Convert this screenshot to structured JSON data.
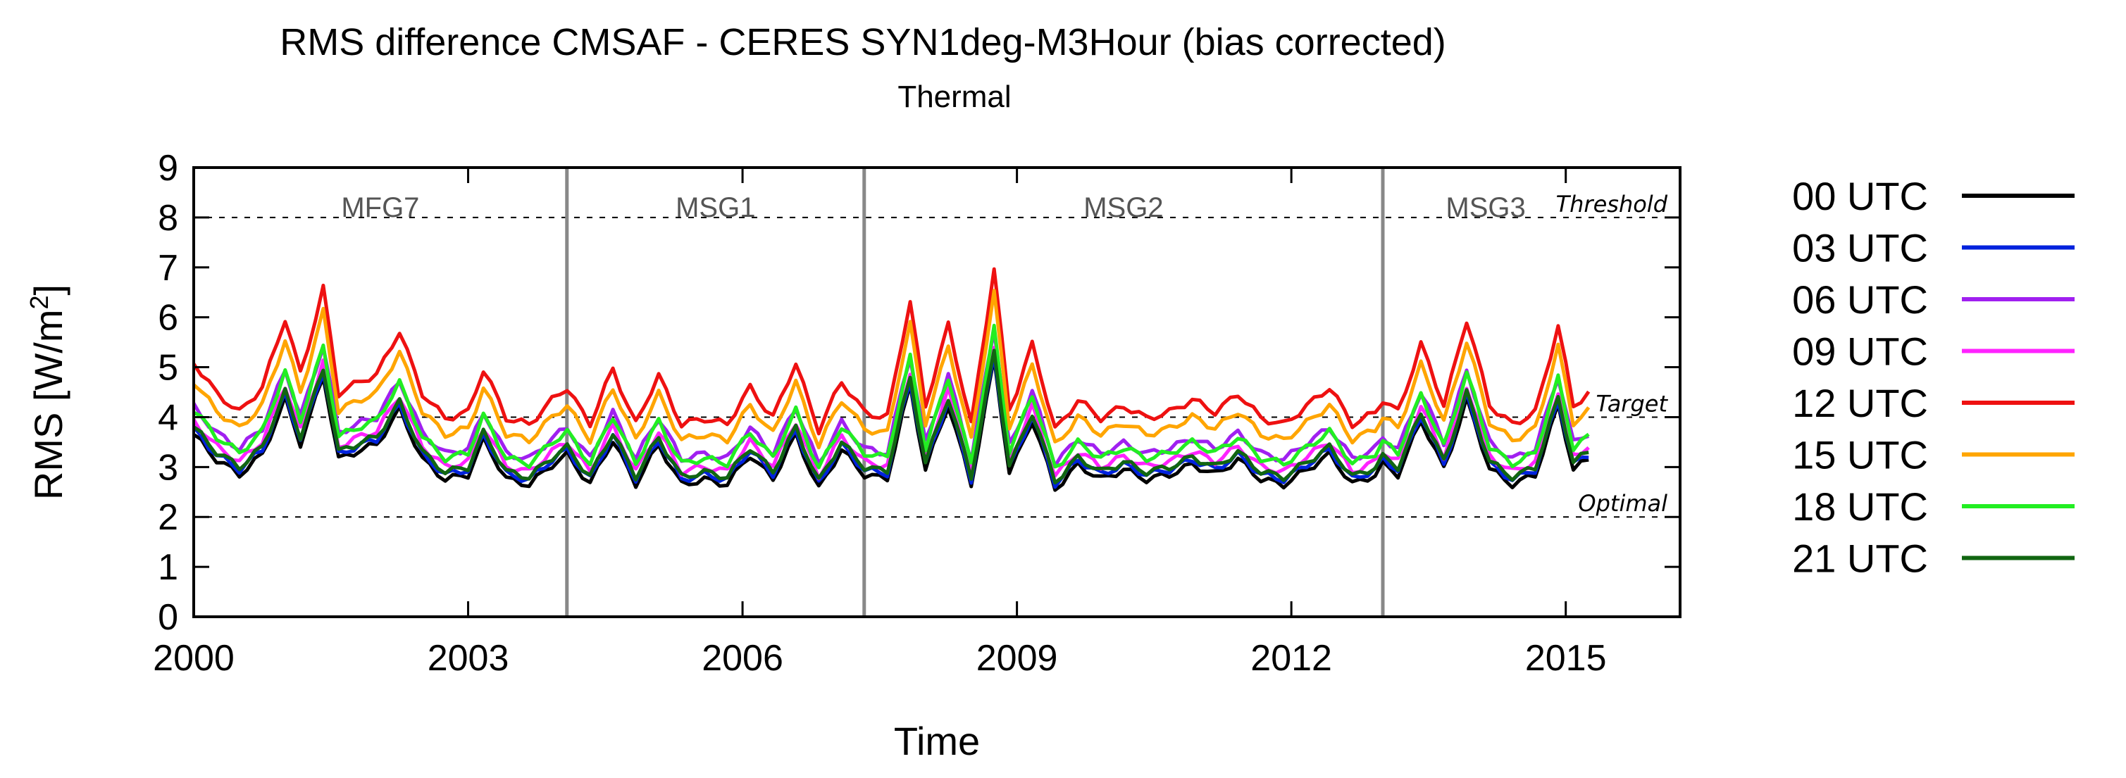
{
  "chart_data": {
    "type": "line",
    "title": "RMS difference CMSAF - CERES SYN1deg-M3Hour (bias corrected)",
    "subtitle": "Thermal",
    "xlabel": "Time",
    "ylabel": "RMS [W/m²]",
    "ylabel_main": "RMS [W/m",
    "ylabel_sup": "2",
    "ylabel_tail": "]",
    "xlim": [
      2000,
      2016.25
    ],
    "ylim": [
      0,
      9
    ],
    "xticks": [
      2000,
      2003,
      2006,
      2009,
      2012,
      2015
    ],
    "xtick_labels": [
      "2000",
      "2003",
      "2006",
      "2009",
      "2012",
      "2015"
    ],
    "yticks": [
      0,
      1,
      2,
      3,
      4,
      5,
      6,
      7,
      8,
      9
    ],
    "ytick_labels": [
      "0",
      "1",
      "2",
      "3",
      "4",
      "5",
      "6",
      "7",
      "8",
      "9"
    ],
    "reference_lines": [
      {
        "label": "Threshold",
        "value": 8
      },
      {
        "label": "Target",
        "value": 4
      },
      {
        "label": "Optimal",
        "value": 2
      }
    ],
    "periods": [
      {
        "label": "MFG7",
        "start": 2000.0,
        "end": 2004.08
      },
      {
        "label": "MSG1",
        "start": 2004.08,
        "end": 2007.33
      },
      {
        "label": "MSG2",
        "start": 2007.33,
        "end": 2013.0
      },
      {
        "label": "MSG3",
        "start": 2013.0,
        "end": 2015.25
      }
    ],
    "anchor_x": [
      2000.0,
      2000.25,
      2000.5,
      2000.75,
      2001.0,
      2001.17,
      2001.42,
      2001.58,
      2001.83,
      2002.0,
      2002.25,
      2002.5,
      2002.75,
      2003.0,
      2003.17,
      2003.42,
      2003.67,
      2003.92,
      2004.08,
      2004.33,
      2004.58,
      2004.83,
      2005.08,
      2005.33,
      2005.58,
      2005.83,
      2006.08,
      2006.33,
      2006.58,
      2006.83,
      2007.08,
      2007.33,
      2007.58,
      2007.83,
      2008.0,
      2008.25,
      2008.5,
      2008.75,
      2008.92,
      2009.17,
      2009.42,
      2009.67,
      2009.92,
      2010.17,
      2010.42,
      2010.67,
      2010.92,
      2011.17,
      2011.42,
      2011.67,
      2011.92,
      2012.17,
      2012.42,
      2012.67,
      2012.92,
      2013.0,
      2013.17,
      2013.42,
      2013.67,
      2013.92,
      2014.17,
      2014.42,
      2014.67,
      2014.92,
      2015.08,
      2015.25
    ],
    "base_y": [
      3.8,
      3.3,
      3.0,
      3.4,
      4.5,
      3.6,
      5.0,
      3.3,
      3.5,
      3.6,
      4.3,
      3.3,
      2.9,
      3.0,
      3.7,
      2.9,
      2.8,
      3.2,
      3.4,
      2.8,
      3.7,
      2.8,
      3.6,
      2.8,
      2.9,
      2.8,
      3.4,
      2.9,
      3.8,
      2.7,
      3.5,
      3.0,
      2.9,
      4.8,
      3.1,
      4.4,
      2.8,
      5.3,
      3.0,
      4.1,
      2.7,
      3.2,
      2.9,
      3.1,
      2.9,
      3.0,
      3.2,
      3.0,
      3.3,
      2.9,
      2.8,
      3.1,
      3.4,
      2.8,
      3.0,
      3.2,
      3.0,
      4.1,
      3.1,
      4.5,
      3.1,
      2.8,
      3.0,
      4.4,
      3.1,
      3.3
    ],
    "legend_position": "right",
    "series": [
      {
        "name": "00 UTC",
        "color": "#000000",
        "offset": -0.15,
        "amp": 1.0
      },
      {
        "name": "03 UTC",
        "color": "#0022dd",
        "offset": -0.05,
        "amp": 1.0
      },
      {
        "name": "06 UTC",
        "color": "#a020f0",
        "offset": 0.35,
        "amp": 1.05
      },
      {
        "name": "09 UTC",
        "color": "#ff22ff",
        "offset": 0.1,
        "amp": 1.02
      },
      {
        "name": "12 UTC",
        "color": "#ee1111",
        "offset": 1.0,
        "amp": 1.25
      },
      {
        "name": "15 UTC",
        "color": "#ffa500",
        "offset": 0.7,
        "amp": 1.18
      },
      {
        "name": "18 UTC",
        "color": "#22ee22",
        "offset": 0.25,
        "amp": 1.08
      },
      {
        "name": "21 UTC",
        "color": "#116611",
        "offset": 0.0,
        "amp": 1.0
      }
    ]
  }
}
